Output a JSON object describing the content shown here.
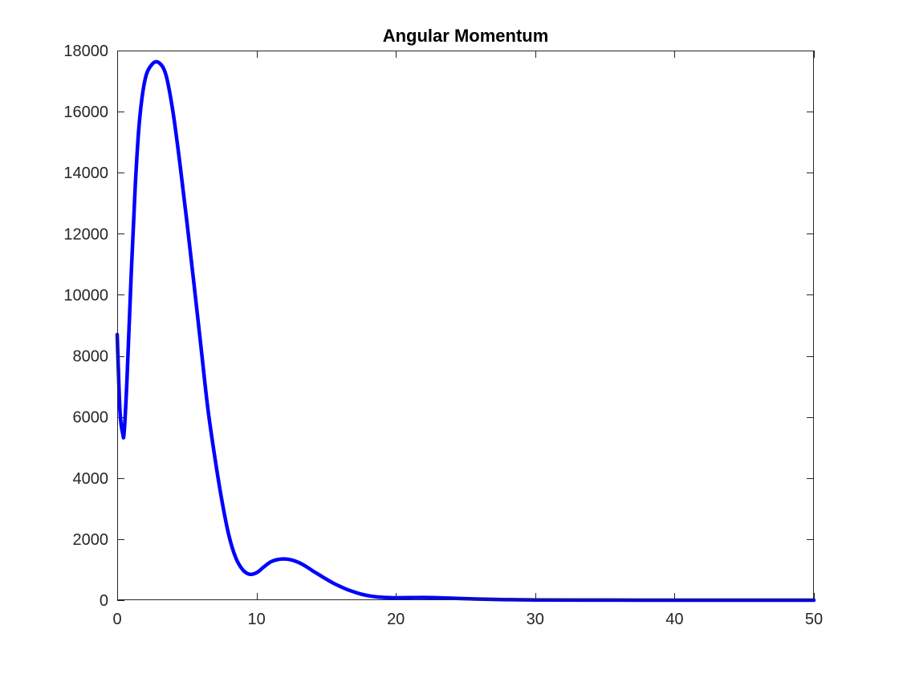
{
  "chart_data": {
    "type": "line",
    "title": "Angular Momentum",
    "xlabel": "",
    "ylabel": "",
    "xlim": [
      0,
      50
    ],
    "ylim": [
      0,
      18000
    ],
    "xticks": [
      0,
      10,
      20,
      30,
      40,
      50
    ],
    "xtick_labels": [
      "0",
      "10",
      "20",
      "30",
      "40",
      "50"
    ],
    "yticks": [
      0,
      2000,
      4000,
      6000,
      8000,
      10000,
      12000,
      14000,
      16000,
      18000
    ],
    "ytick_labels": [
      "0",
      "2000",
      "4000",
      "6000",
      "8000",
      "10000",
      "12000",
      "14000",
      "16000",
      "18000"
    ],
    "grid": false,
    "legend": "none",
    "series": [
      {
        "color": "#0000ff",
        "x": [
          0,
          0.2,
          0.4,
          0.5,
          0.7,
          1,
          1.3,
          1.6,
          2,
          2.5,
          3,
          3.5,
          4,
          4.5,
          5,
          5.5,
          6,
          6.5,
          7,
          7.5,
          8,
          8.5,
          9,
          9.5,
          10,
          10.5,
          11,
          11.5,
          12,
          12.5,
          13,
          13.5,
          14,
          14.5,
          15,
          15.5,
          16,
          16.5,
          17,
          17.5,
          18,
          18.5,
          19,
          19.5,
          20,
          21,
          22,
          23,
          24,
          25,
          26,
          28,
          30,
          35,
          40,
          45,
          50
        ],
        "y": [
          8700,
          6200,
          5450,
          5500,
          7200,
          10600,
          13600,
          15700,
          17050,
          17550,
          17600,
          17200,
          16000,
          14300,
          12400,
          10400,
          8350,
          6300,
          4700,
          3300,
          2150,
          1400,
          1000,
          850,
          900,
          1080,
          1250,
          1330,
          1350,
          1320,
          1240,
          1120,
          970,
          830,
          690,
          560,
          450,
          350,
          270,
          200,
          150,
          115,
          95,
          85,
          80,
          85,
          90,
          80,
          65,
          50,
          35,
          18,
          8,
          2,
          0,
          0,
          0
        ]
      }
    ]
  }
}
